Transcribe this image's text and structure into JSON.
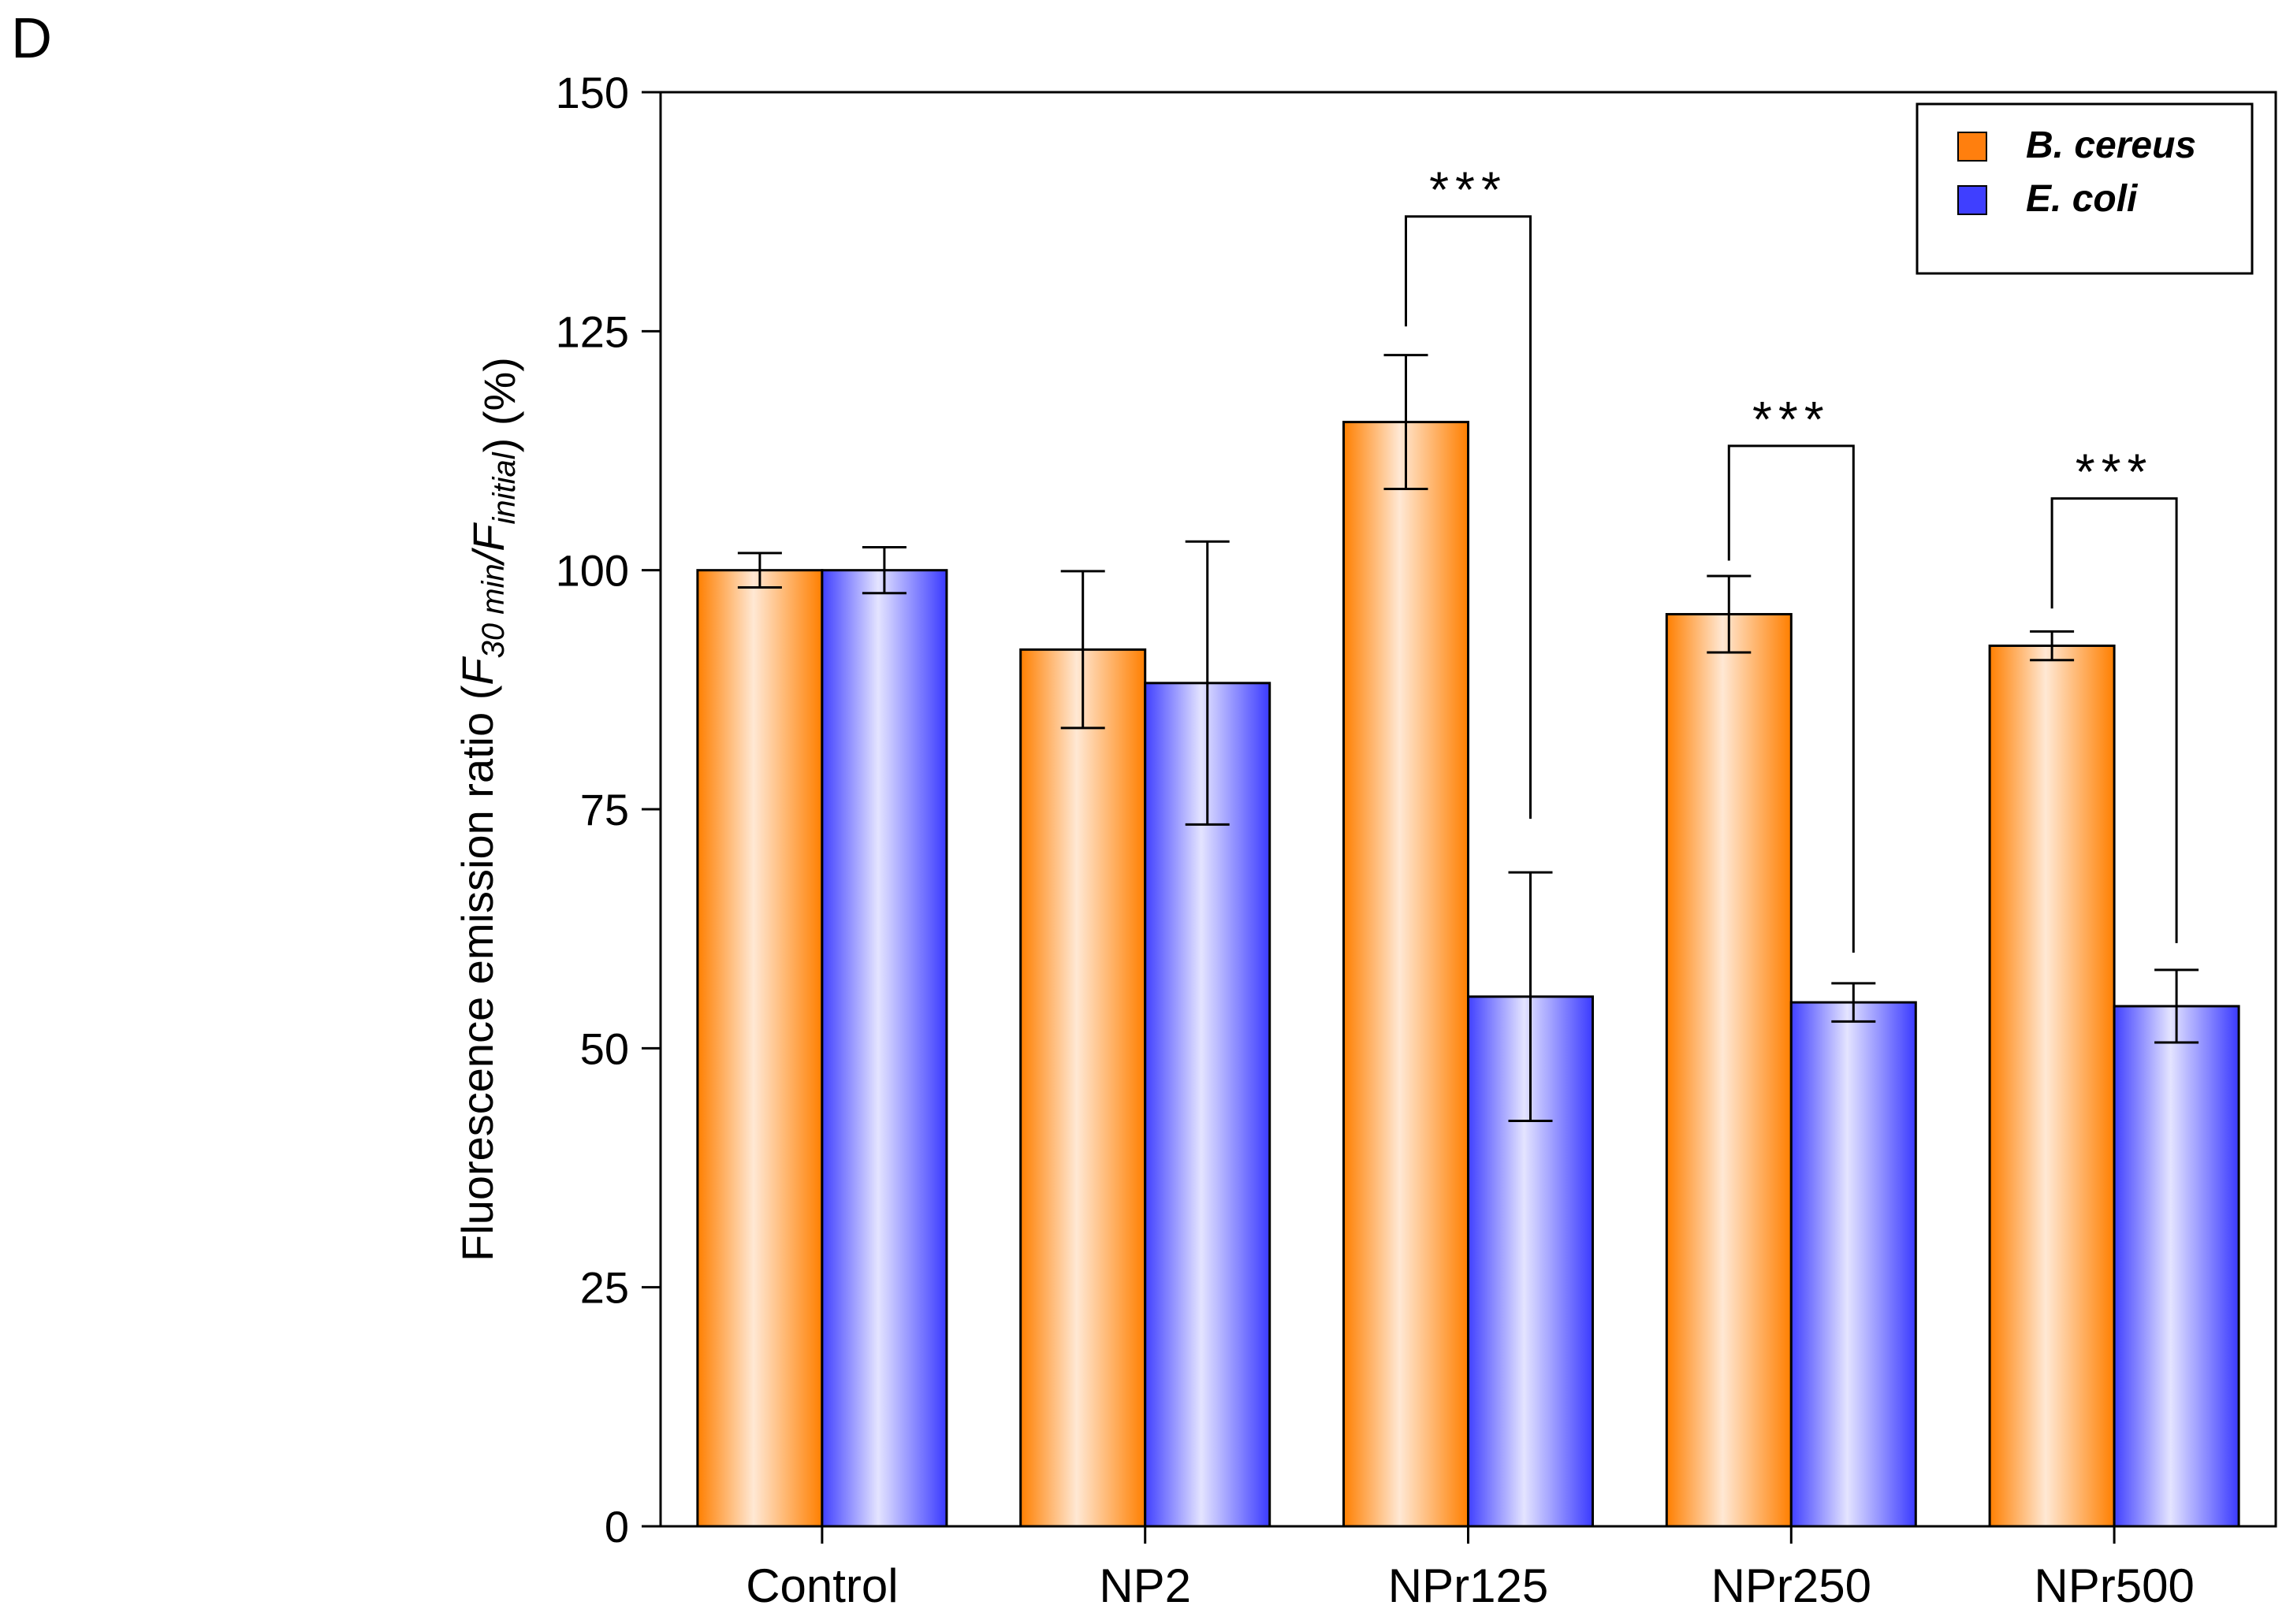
{
  "panel_label": "D",
  "chart_data": {
    "type": "bar",
    "title": "",
    "xlabel": "",
    "ylabel_parts": [
      {
        "text": "Fluorescence emission ratio (",
        "style": "normal"
      },
      {
        "text": "F",
        "style": "italic"
      },
      {
        "text": "30 min",
        "style": "italic-sub"
      },
      {
        "text": "/",
        "style": "italic"
      },
      {
        "text": "F",
        "style": "italic"
      },
      {
        "text": "initial",
        "style": "italic-sub"
      },
      {
        "text": ") (%)",
        "style": "normal"
      }
    ],
    "ylim": [
      0,
      150
    ],
    "yticks": [
      0,
      25,
      50,
      75,
      100,
      125,
      150
    ],
    "categories": [
      "Control",
      "NP2",
      "NPr125",
      "NPr250",
      "NPr500"
    ],
    "series": [
      {
        "name": "B. cereus",
        "color": "#ff7f0e",
        "gradient": [
          "#ff7f00",
          "#ffe8d4",
          "#ff7f00"
        ],
        "values": [
          100,
          91.7,
          115.5,
          95.4,
          92.1
        ],
        "errors": [
          1.8,
          8.2,
          7.0,
          4.0,
          1.5
        ]
      },
      {
        "name": "E. coli",
        "color": "#3f3fff",
        "gradient": [
          "#4040ff",
          "#e4e4ff",
          "#3a3aff"
        ],
        "values": [
          100,
          88.2,
          55.4,
          54.8,
          54.4
        ],
        "errors": [
          2.4,
          14.8,
          13.0,
          2.0,
          3.8
        ]
      }
    ],
    "significance": [
      {
        "category": "NPr125",
        "label": "***",
        "bracket_y": 137,
        "left_start_y": 125.5,
        "right_start_y": 74
      },
      {
        "category": "NPr250",
        "label": "***",
        "bracket_y": 113,
        "left_start_y": 101,
        "right_start_y": 60
      },
      {
        "category": "NPr500",
        "label": "***",
        "bracket_y": 107.5,
        "left_start_y": 96,
        "right_start_y": 61
      }
    ],
    "legend": {
      "position": "top-right",
      "entries": [
        "B. cereus",
        "E. coli"
      ]
    },
    "grid": false
  }
}
